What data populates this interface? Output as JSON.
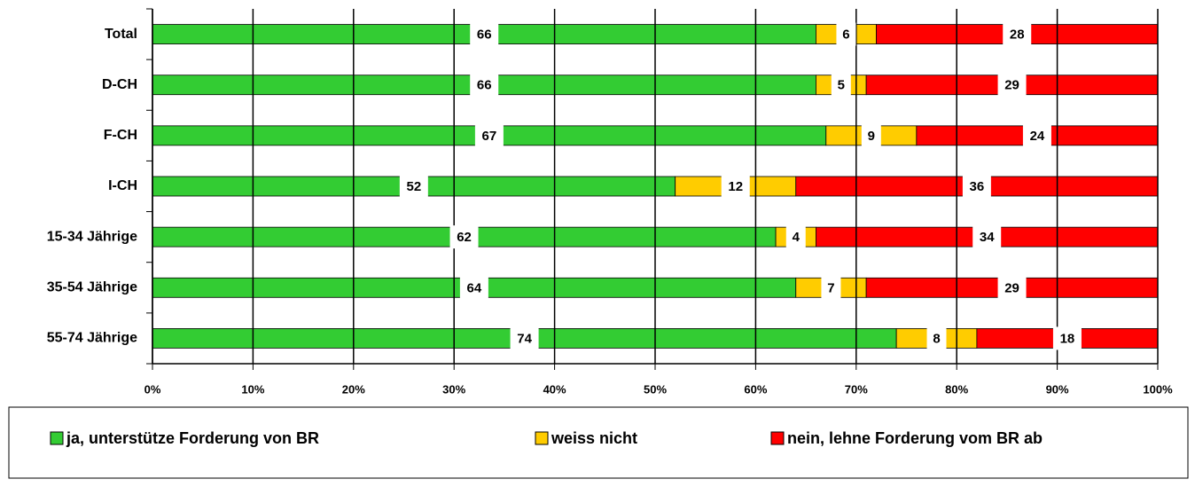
{
  "chart_data": {
    "type": "stacked-bar-horizontal",
    "categories": [
      "Total",
      "D-CH",
      "F-CH",
      "I-CH",
      "15-34 Jährige",
      "35-54 Jährige",
      "55-74 Jährige"
    ],
    "series": [
      {
        "name": "ja, unterstütze Forderung von BR",
        "color": "#33cc33",
        "values": [
          66,
          66,
          67,
          52,
          62,
          64,
          74
        ]
      },
      {
        "name": "weiss nicht",
        "color": "#ffcc00",
        "values": [
          6,
          5,
          9,
          12,
          4,
          7,
          8
        ]
      },
      {
        "name": "nein, lehne Forderung vom BR ab",
        "color": "#ff0000",
        "values": [
          28,
          29,
          24,
          36,
          34,
          29,
          18
        ]
      }
    ],
    "xlim": [
      0,
      100
    ],
    "xticks": [
      {
        "value": 0,
        "label": "0%"
      },
      {
        "value": 10,
        "label": "10%"
      },
      {
        "value": 20,
        "label": "20%"
      },
      {
        "value": 30,
        "label": "30%"
      },
      {
        "value": 40,
        "label": "40%"
      },
      {
        "value": 50,
        "label": "50%"
      },
      {
        "value": 60,
        "label": "60%"
      },
      {
        "value": 70,
        "label": "70%"
      },
      {
        "value": 80,
        "label": "80%"
      },
      {
        "value": 90,
        "label": "90%"
      },
      {
        "value": 100,
        "label": "100%"
      }
    ],
    "grid": true,
    "legend": "bottom"
  }
}
